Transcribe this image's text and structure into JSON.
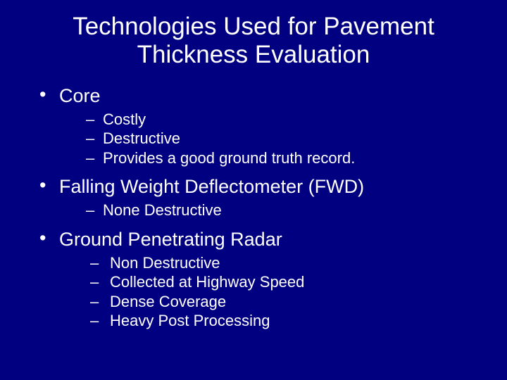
{
  "slide": {
    "background_color": "#000080",
    "text_color": "#ffffff",
    "font_family": "Arial",
    "title": {
      "text": "Technologies Used for Pavement Thickness Evaluation",
      "fontsize": 35,
      "align": "center"
    },
    "bullets": [
      {
        "label": "Core",
        "fontsize": 27,
        "sub_fontsize": 22,
        "sub": [
          "Costly",
          "Destructive",
          "Provides a good ground truth record."
        ]
      },
      {
        "label": "Falling Weight Deflectometer (FWD)",
        "fontsize": 27,
        "sub_fontsize": 22,
        "sub": [
          "None Destructive"
        ]
      },
      {
        "label": "Ground Penetrating Radar",
        "fontsize": 27,
        "sub_fontsize": 22,
        "sub_indent_extra": true,
        "sub": [
          "Non Destructive",
          "Collected at Highway Speed",
          "Dense Coverage",
          "Heavy Post Processing"
        ]
      }
    ]
  }
}
